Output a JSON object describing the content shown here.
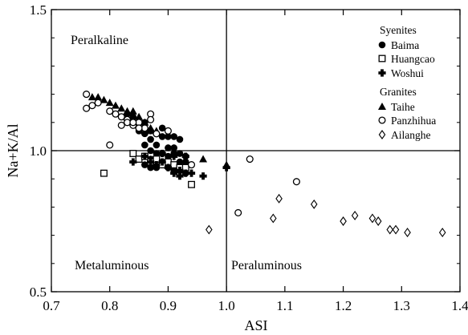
{
  "chart_data": {
    "type": "scatter",
    "xlabel": "ASI",
    "ylabel": "Na+K/Al",
    "xlim": [
      0.7,
      1.4
    ],
    "ylim": [
      0.5,
      1.5
    ],
    "xticks": [
      "0.7",
      "0.8",
      "0.9",
      "1.0",
      "1.1",
      "1.2",
      "1.3",
      "1.4"
    ],
    "yticks": [
      "0.5",
      "1.0",
      "1.5"
    ],
    "reference_lines": {
      "x": 1.0,
      "y": 1.0
    },
    "region_labels": {
      "top_left": "Peralkaline",
      "bottom_left": "Metaluminous",
      "bottom_right": "Peraluminous"
    },
    "legend_placement": "top-right",
    "legend_groups": [
      {
        "heading": "Syenites",
        "series": [
          "Baima",
          "Huangcao",
          "Woshui"
        ]
      },
      {
        "heading": "Granites",
        "series": [
          "Taihe",
          "Panzhihua",
          "Ailanghe"
        ]
      }
    ],
    "series": [
      {
        "name": "Baima",
        "marker": "filled-circle",
        "points": [
          [
            0.84,
            1.12
          ],
          [
            0.85,
            1.1
          ],
          [
            0.86,
            1.1
          ],
          [
            0.87,
            1.07
          ],
          [
            0.88,
            1.06
          ],
          [
            0.87,
            1.04
          ],
          [
            0.89,
            1.05
          ],
          [
            0.9,
            1.05
          ],
          [
            0.91,
            1.05
          ],
          [
            0.92,
            1.04
          ],
          [
            0.88,
            1.02
          ],
          [
            0.9,
            1.01
          ],
          [
            0.91,
            1.01
          ],
          [
            0.86,
            1.02
          ],
          [
            0.87,
            1.0
          ],
          [
            0.88,
            0.99
          ],
          [
            0.89,
            0.99
          ],
          [
            0.9,
            0.98
          ],
          [
            0.91,
            0.99
          ],
          [
            0.92,
            0.99
          ],
          [
            0.93,
            0.98
          ],
          [
            0.86,
            0.98
          ],
          [
            0.87,
            0.97
          ],
          [
            0.88,
            0.97
          ],
          [
            0.89,
            0.96
          ],
          [
            0.9,
            0.96
          ],
          [
            0.92,
            0.96
          ],
          [
            0.93,
            0.96
          ],
          [
            0.86,
            0.95
          ],
          [
            0.87,
            0.94
          ],
          [
            0.88,
            0.94
          ],
          [
            0.9,
            0.94
          ],
          [
            0.91,
            0.93
          ],
          [
            0.92,
            0.93
          ],
          [
            0.93,
            0.92
          ],
          [
            0.85,
            1.07
          ],
          [
            0.86,
            1.06
          ],
          [
            0.89,
            1.08
          ],
          [
            0.83,
            1.13
          ]
        ]
      },
      {
        "name": "Huangcao",
        "marker": "open-square",
        "points": [
          [
            0.79,
            0.92
          ],
          [
            0.84,
            0.99
          ],
          [
            0.85,
            0.97
          ],
          [
            0.86,
            0.98
          ],
          [
            0.87,
            0.96
          ],
          [
            0.88,
            0.97
          ],
          [
            0.89,
            0.95
          ],
          [
            0.9,
            0.96
          ],
          [
            0.91,
            0.95
          ],
          [
            0.92,
            0.94
          ],
          [
            0.93,
            0.94
          ],
          [
            0.94,
            0.88
          ]
        ]
      },
      {
        "name": "Woshui",
        "marker": "plus",
        "points": [
          [
            0.84,
            0.96
          ],
          [
            0.86,
            0.98
          ],
          [
            0.87,
            0.96
          ],
          [
            0.88,
            0.95
          ],
          [
            0.89,
            0.96
          ],
          [
            0.9,
            0.94
          ],
          [
            0.91,
            0.92
          ],
          [
            0.92,
            0.93
          ],
          [
            0.93,
            0.92
          ],
          [
            0.94,
            0.92
          ],
          [
            0.92,
            0.91
          ],
          [
            0.96,
            0.91
          ],
          [
            1.0,
            0.94
          ],
          [
            0.89,
            0.99
          ],
          [
            0.91,
            0.98
          ],
          [
            0.93,
            0.98
          ]
        ]
      },
      {
        "name": "Taihe",
        "marker": "filled-triangle",
        "points": [
          [
            0.77,
            1.19
          ],
          [
            0.78,
            1.19
          ],
          [
            0.79,
            1.18
          ],
          [
            0.8,
            1.17
          ],
          [
            0.81,
            1.16
          ],
          [
            0.82,
            1.15
          ],
          [
            0.83,
            1.14
          ],
          [
            0.84,
            1.14
          ],
          [
            0.85,
            1.12
          ],
          [
            0.85,
            1.09
          ],
          [
            0.86,
            1.1
          ],
          [
            0.87,
            1.08
          ],
          [
            0.86,
            1.07
          ],
          [
            0.88,
            1.07
          ],
          [
            0.96,
            0.97
          ],
          [
            1.0,
            0.95
          ]
        ]
      },
      {
        "name": "Panzhihua",
        "marker": "open-circle",
        "points": [
          [
            0.76,
            1.2
          ],
          [
            0.76,
            1.15
          ],
          [
            0.77,
            1.16
          ],
          [
            0.78,
            1.17
          ],
          [
            0.8,
            1.14
          ],
          [
            0.81,
            1.13
          ],
          [
            0.82,
            1.12
          ],
          [
            0.83,
            1.11
          ],
          [
            0.82,
            1.09
          ],
          [
            0.83,
            1.1
          ],
          [
            0.84,
            1.09
          ],
          [
            0.85,
            1.1
          ],
          [
            0.87,
            1.13
          ],
          [
            0.87,
            1.11
          ],
          [
            0.86,
            1.08
          ],
          [
            0.88,
            1.06
          ],
          [
            0.9,
            1.07
          ],
          [
            0.8,
            1.02
          ],
          [
            0.84,
            1.1
          ],
          [
            0.85,
            1.08
          ],
          [
            0.94,
            0.95
          ],
          [
            1.02,
            0.78
          ],
          [
            1.04,
            0.97
          ],
          [
            1.12,
            0.89
          ]
        ]
      },
      {
        "name": "Ailanghe",
        "marker": "open-diamond",
        "points": [
          [
            0.97,
            0.72
          ],
          [
            1.08,
            0.76
          ],
          [
            1.09,
            0.83
          ],
          [
            1.15,
            0.81
          ],
          [
            1.2,
            0.75
          ],
          [
            1.22,
            0.77
          ],
          [
            1.25,
            0.76
          ],
          [
            1.26,
            0.75
          ],
          [
            1.28,
            0.72
          ],
          [
            1.29,
            0.72
          ],
          [
            1.31,
            0.71
          ],
          [
            1.37,
            0.71
          ]
        ]
      }
    ]
  }
}
